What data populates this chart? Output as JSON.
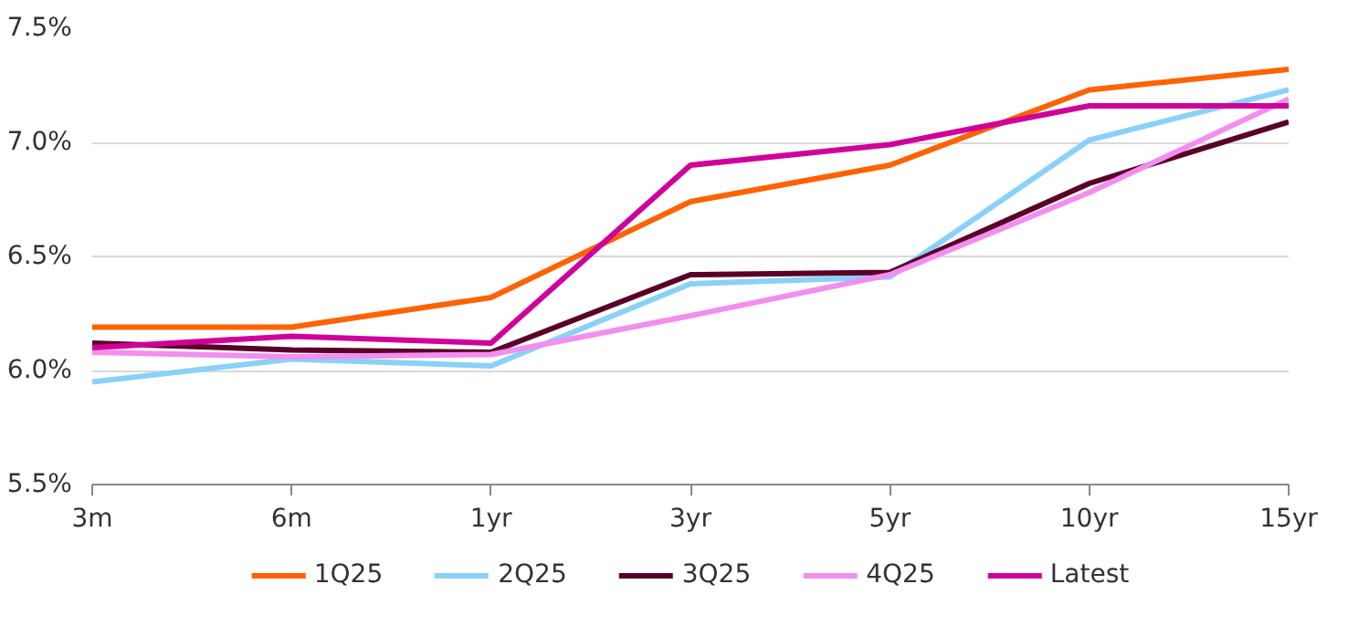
{
  "chart_data": {
    "type": "line",
    "categories": [
      "3m",
      "6m",
      "1yr",
      "3yr",
      "5yr",
      "10yr",
      "15yr"
    ],
    "series": [
      {
        "name": "1Q25",
        "color": "#ff6200",
        "values": [
          6.19,
          6.19,
          6.32,
          6.74,
          6.9,
          7.23,
          7.32
        ]
      },
      {
        "name": "2Q25",
        "color": "#89d1f9",
        "values": [
          5.95,
          6.05,
          6.02,
          6.38,
          6.41,
          7.01,
          7.23
        ]
      },
      {
        "name": "3Q25",
        "color": "#5a0028",
        "values": [
          6.12,
          6.09,
          6.08,
          6.42,
          6.43,
          6.82,
          7.09
        ]
      },
      {
        "name": "4Q25",
        "color": "#f28ef0",
        "values": [
          6.08,
          6.06,
          6.07,
          6.24,
          6.42,
          6.78,
          7.19
        ]
      },
      {
        "name": "Latest",
        "color": "#d1009a",
        "values": [
          6.1,
          6.15,
          6.12,
          6.9,
          6.99,
          7.16,
          7.16
        ]
      }
    ],
    "ylim": [
      5.5,
      7.5
    ],
    "yticks": [
      {
        "value": 5.5,
        "label": "5.5%"
      },
      {
        "value": 6.0,
        "label": "6.0%"
      },
      {
        "value": 6.5,
        "label": "6.5%"
      },
      {
        "value": 7.0,
        "label": "7.0%"
      },
      {
        "value": 7.5,
        "label": "7.5%"
      }
    ],
    "grid": "y",
    "legend": "bottom",
    "marker": "none",
    "line_style": "solid"
  }
}
